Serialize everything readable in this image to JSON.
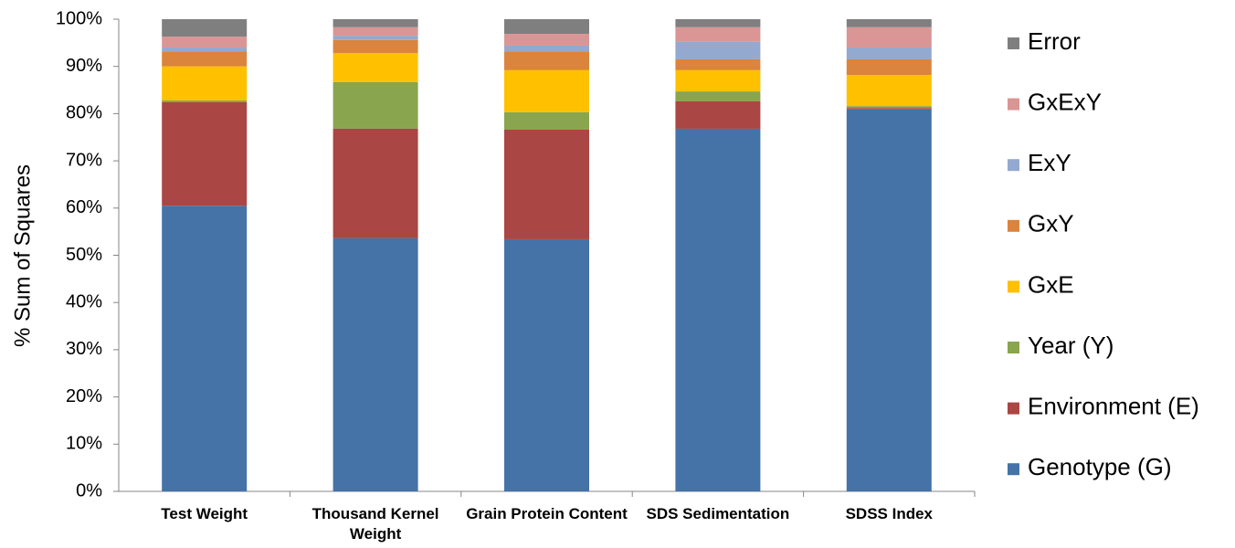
{
  "chart_data": {
    "type": "stacked-bar",
    "y_label": "% Sum of Squares",
    "categories": [
      "Test Weight",
      "Thousand Kernel Weight",
      "Grain Protein Content",
      "SDS Sedimentation",
      "SDSS Index"
    ],
    "series": [
      {
        "name": "Genotype (G)",
        "color": "#4572a7",
        "values": [
          60.5,
          53.6,
          53.4,
          76.8,
          80.9
        ]
      },
      {
        "name": "Environment (E)",
        "color": "#aa4643",
        "values": [
          21.9,
          23.2,
          23.2,
          5.8,
          0.3
        ]
      },
      {
        "name": "Year (Y)",
        "color": "#89a54e",
        "values": [
          0.4,
          9.9,
          3.7,
          2.1,
          0.4
        ]
      },
      {
        "name": "GxE",
        "color": "#ffc000",
        "values": [
          7.2,
          6.1,
          8.9,
          4.5,
          6.6
        ]
      },
      {
        "name": "GxY",
        "color": "#db843d",
        "values": [
          3.2,
          2.8,
          4.0,
          2.3,
          3.3
        ]
      },
      {
        "name": "ExY",
        "color": "#93a9cf",
        "values": [
          0.8,
          0.9,
          1.2,
          3.7,
          2.5
        ]
      },
      {
        "name": "GxExY",
        "color": "#d99694",
        "values": [
          2.3,
          1.8,
          2.5,
          3.1,
          4.3
        ]
      },
      {
        "name": "Error",
        "color": "#7f7f7f",
        "values": [
          3.7,
          1.7,
          3.1,
          1.7,
          1.7
        ]
      }
    ],
    "ylim": [
      0,
      100
    ],
    "yticks": [
      {
        "value": 0,
        "label": "0%"
      },
      {
        "value": 10,
        "label": "10%"
      },
      {
        "value": 20,
        "label": "20%"
      },
      {
        "value": 30,
        "label": "30%"
      },
      {
        "value": 40,
        "label": "40%"
      },
      {
        "value": 50,
        "label": "50%"
      },
      {
        "value": 60,
        "label": "60%"
      },
      {
        "value": 70,
        "label": "70%"
      },
      {
        "value": 80,
        "label": "80%"
      },
      {
        "value": 90,
        "label": "90%"
      },
      {
        "value": 100,
        "label": "100%"
      }
    ],
    "legend": "right"
  }
}
